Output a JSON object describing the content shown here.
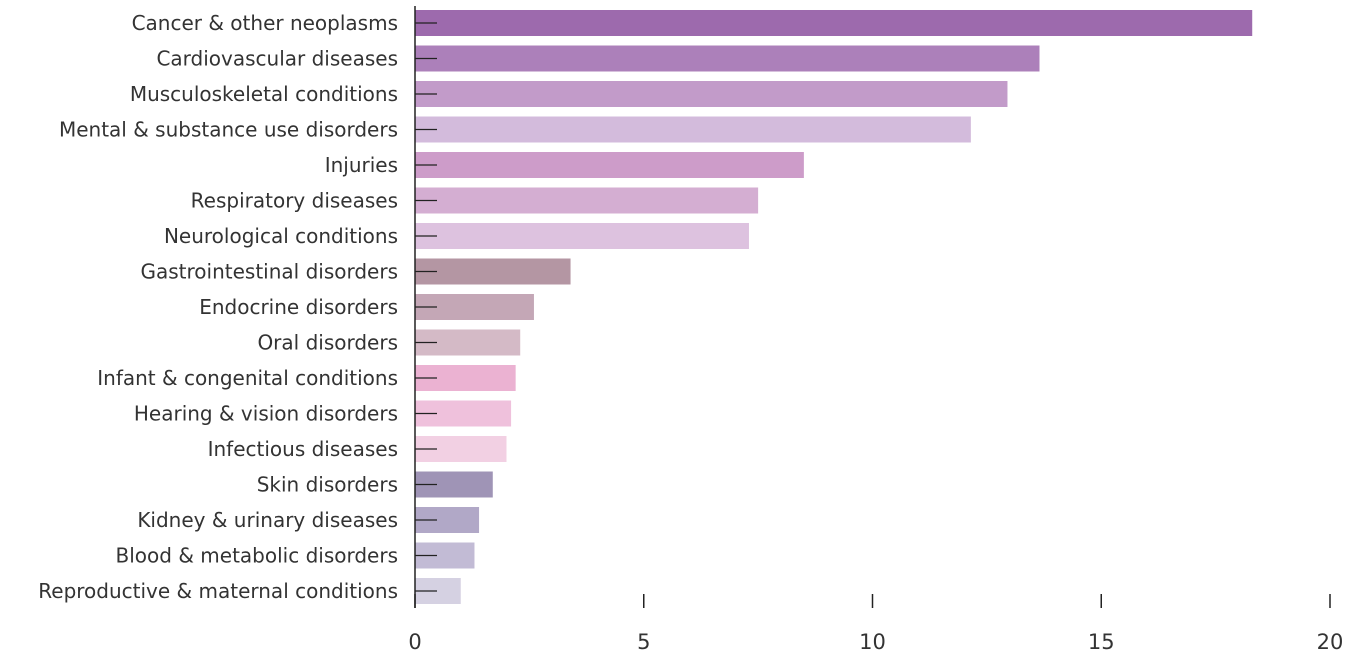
{
  "chart_data": {
    "type": "bar",
    "orientation": "horizontal",
    "title": "",
    "xlabel": "",
    "ylabel": "",
    "xlim": [
      0,
      20
    ],
    "x_ticks": [
      "0",
      "5",
      "10",
      "15",
      "20"
    ],
    "grid": false,
    "categories": [
      "Cancer & other neoplasms",
      "Cardiovascular diseases",
      "Musculoskeletal conditions",
      "Mental & substance use disorders",
      "Injuries",
      "Respiratory diseases",
      "Neurological conditions",
      "Gastrointestinal disorders",
      "Endocrine disorders",
      "Oral disorders",
      "Infant & congenital conditions",
      "Hearing & vision disorders",
      "Infectious diseases",
      "Skin disorders",
      "Kidney & urinary diseases",
      "Blood & metabolic disorders",
      "Reproductive & maternal conditions"
    ],
    "values": [
      18.3,
      13.65,
      12.95,
      12.15,
      8.5,
      7.5,
      7.3,
      3.4,
      2.6,
      2.3,
      2.2,
      2.1,
      2.0,
      1.7,
      1.4,
      1.3,
      1.0
    ],
    "colors": [
      "#9d6aad",
      "#ac80ba",
      "#c29bc9",
      "#d3bbdc",
      "#cd9cc9",
      "#d4aed2",
      "#ddc2df",
      "#b496a3",
      "#c4a7b6",
      "#d4bac6",
      "#ebb2d2",
      "#efc1dc",
      "#f2d0e3",
      "#9f94b6",
      "#b1a8c7",
      "#c2bbd5",
      "#d5d1e2"
    ]
  }
}
